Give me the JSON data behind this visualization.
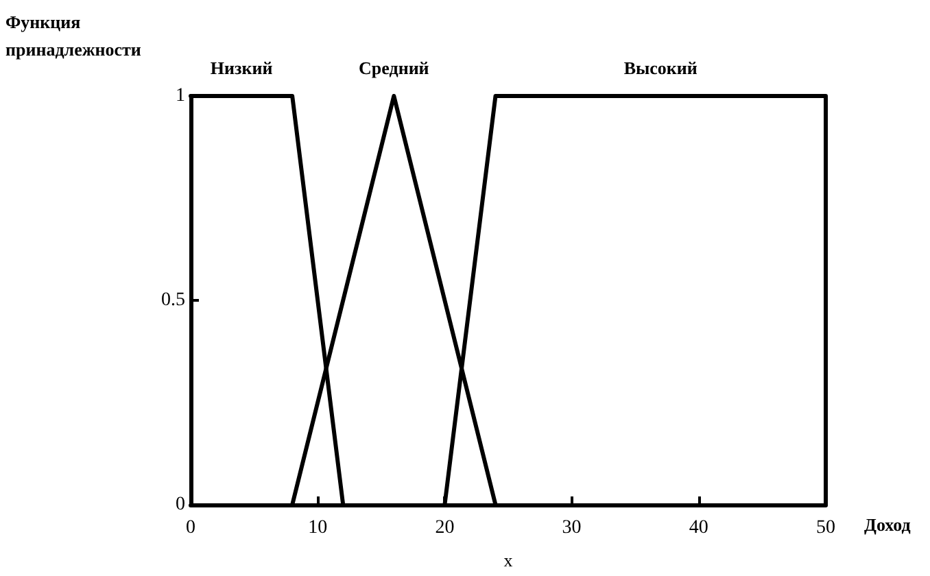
{
  "chart_data": {
    "type": "line",
    "ylabel": "Функция принадлежности",
    "xlabel": "x",
    "annotations": [
      "Доход"
    ],
    "series": [
      {
        "name": "Низкий",
        "color": "#000000",
        "x": [
          0,
          8,
          12
        ],
        "values": [
          1,
          1,
          0
        ]
      },
      {
        "name": "Средний",
        "color": "#000000",
        "x": [
          8,
          16,
          24
        ],
        "values": [
          0,
          1,
          0
        ]
      },
      {
        "name": "Высокий",
        "color": "#000000",
        "x": [
          20,
          24,
          50,
          50
        ],
        "values": [
          0,
          1,
          1,
          0
        ]
      }
    ],
    "xlim": [
      0,
      50
    ],
    "xticks": [
      0,
      10,
      20,
      30,
      40,
      50
    ],
    "ylim": [
      0,
      1
    ],
    "yticks": [
      0,
      0.5,
      1
    ],
    "grid": false,
    "legend": false,
    "marker": "none",
    "line_style": "solid"
  }
}
